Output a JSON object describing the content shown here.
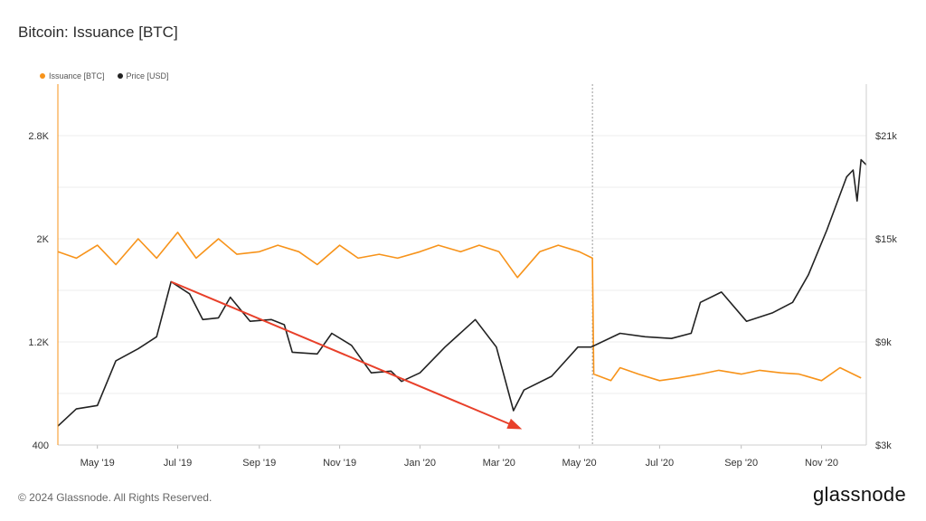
{
  "page": {
    "title": "Bitcoin: Issuance [BTC]",
    "copyright": "© 2024 Glassnode. All Rights Reserved.",
    "brand": "glassnode"
  },
  "colors": {
    "issuance": "#f7931a",
    "price": "#222222",
    "arrow": "#e8402a",
    "grid": "#ececec"
  },
  "chart_data": {
    "type": "line",
    "title": "Bitcoin: Issuance [BTC]",
    "legend": [
      {
        "name": "Issuance [BTC]",
        "color": "#f7931a"
      },
      {
        "name": "Price [USD]",
        "color": "#222222"
      }
    ],
    "legend_position": "top-left",
    "grid": true,
    "x_ticks": [
      "May '19",
      "Jul '19",
      "Sep '19",
      "Nov '19",
      "Jan '20",
      "Mar '20",
      "May '20",
      "Jul '20",
      "Sep '20",
      "Nov '20"
    ],
    "x_range": [
      "2019-04-01",
      "2020-12-05"
    ],
    "y_left": {
      "ticks": [
        "400",
        "1.2K",
        "2K",
        "2.8K"
      ],
      "range": [
        400,
        3200
      ]
    },
    "y_right": {
      "ticks": [
        "$3k",
        "$9k",
        "$15k",
        "$21k"
      ],
      "range": [
        3000,
        24000
      ],
      "scale": "linear"
    },
    "halving_marker_date": "2020-05-11",
    "series": [
      {
        "name": "Issuance [BTC]",
        "axis": "left",
        "points": [
          [
            "2019-04-01",
            1900
          ],
          [
            "2019-04-15",
            1850
          ],
          [
            "2019-05-01",
            1950
          ],
          [
            "2019-05-15",
            1800
          ],
          [
            "2019-06-01",
            2000
          ],
          [
            "2019-06-15",
            1850
          ],
          [
            "2019-07-01",
            2050
          ],
          [
            "2019-07-15",
            1850
          ],
          [
            "2019-08-01",
            2000
          ],
          [
            "2019-08-15",
            1880
          ],
          [
            "2019-09-01",
            1900
          ],
          [
            "2019-09-15",
            1950
          ],
          [
            "2019-10-01",
            1900
          ],
          [
            "2019-10-15",
            1800
          ],
          [
            "2019-11-01",
            1950
          ],
          [
            "2019-11-15",
            1850
          ],
          [
            "2019-12-01",
            1880
          ],
          [
            "2019-12-15",
            1850
          ],
          [
            "2020-01-01",
            1900
          ],
          [
            "2020-01-15",
            1950
          ],
          [
            "2020-02-01",
            1900
          ],
          [
            "2020-02-15",
            1950
          ],
          [
            "2020-03-01",
            1900
          ],
          [
            "2020-03-15",
            1700
          ],
          [
            "2020-04-01",
            1900
          ],
          [
            "2020-04-15",
            1950
          ],
          [
            "2020-05-01",
            1900
          ],
          [
            "2020-05-11",
            1850
          ],
          [
            "2020-05-12",
            950
          ],
          [
            "2020-05-25",
            900
          ],
          [
            "2020-06-01",
            1000
          ],
          [
            "2020-06-15",
            950
          ],
          [
            "2020-07-01",
            900
          ],
          [
            "2020-07-15",
            920
          ],
          [
            "2020-08-01",
            950
          ],
          [
            "2020-08-15",
            980
          ],
          [
            "2020-09-01",
            950
          ],
          [
            "2020-09-15",
            980
          ],
          [
            "2020-10-01",
            960
          ],
          [
            "2020-10-15",
            950
          ],
          [
            "2020-11-01",
            900
          ],
          [
            "2020-11-15",
            1000
          ],
          [
            "2020-12-01",
            920
          ]
        ]
      },
      {
        "name": "Price [USD]",
        "axis": "right",
        "points": [
          [
            "2019-04-01",
            4100
          ],
          [
            "2019-04-15",
            5100
          ],
          [
            "2019-05-01",
            5300
          ],
          [
            "2019-05-15",
            7900
          ],
          [
            "2019-06-01",
            8600
          ],
          [
            "2019-06-15",
            9300
          ],
          [
            "2019-06-26",
            12500
          ],
          [
            "2019-07-10",
            11800
          ],
          [
            "2019-07-20",
            10300
          ],
          [
            "2019-08-01",
            10400
          ],
          [
            "2019-08-10",
            11600
          ],
          [
            "2019-08-25",
            10200
          ],
          [
            "2019-09-10",
            10300
          ],
          [
            "2019-09-20",
            10000
          ],
          [
            "2019-09-26",
            8400
          ],
          [
            "2019-10-15",
            8300
          ],
          [
            "2019-10-26",
            9500
          ],
          [
            "2019-11-10",
            8800
          ],
          [
            "2019-11-25",
            7200
          ],
          [
            "2019-12-10",
            7300
          ],
          [
            "2019-12-18",
            6700
          ],
          [
            "2020-01-01",
            7200
          ],
          [
            "2020-01-20",
            8700
          ],
          [
            "2020-02-12",
            10300
          ],
          [
            "2020-02-28",
            8700
          ],
          [
            "2020-03-12",
            5000
          ],
          [
            "2020-03-20",
            6200
          ],
          [
            "2020-04-10",
            7000
          ],
          [
            "2020-04-30",
            8700
          ],
          [
            "2020-05-10",
            8700
          ],
          [
            "2020-06-01",
            9500
          ],
          [
            "2020-06-20",
            9300
          ],
          [
            "2020-07-10",
            9200
          ],
          [
            "2020-07-25",
            9500
          ],
          [
            "2020-08-01",
            11300
          ],
          [
            "2020-08-17",
            11900
          ],
          [
            "2020-09-05",
            10200
          ],
          [
            "2020-09-25",
            10700
          ],
          [
            "2020-10-10",
            11300
          ],
          [
            "2020-10-22",
            12900
          ],
          [
            "2020-11-05",
            15500
          ],
          [
            "2020-11-20",
            18600
          ],
          [
            "2020-11-25",
            19000
          ],
          [
            "2020-11-28",
            17200
          ],
          [
            "2020-12-01",
            19600
          ],
          [
            "2020-12-05",
            19300
          ]
        ]
      }
    ],
    "annotation_arrow": {
      "from": [
        "2019-06-26",
        12500
      ],
      "to": [
        "2020-03-16",
        4000
      ],
      "axis": "right"
    }
  }
}
